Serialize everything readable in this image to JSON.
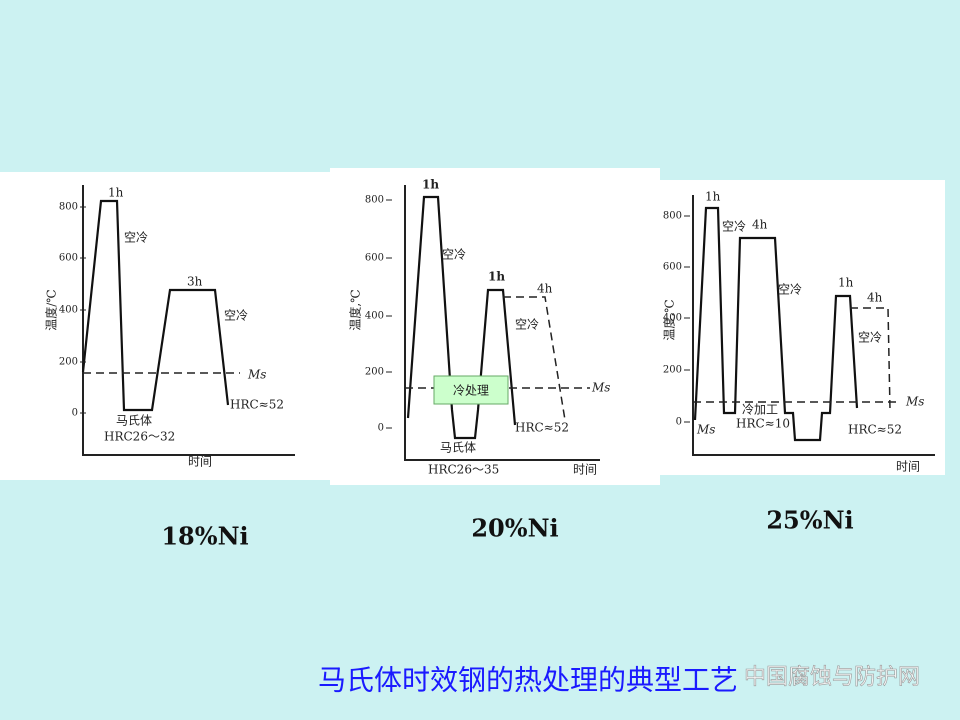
{
  "panels": [
    {
      "y_label": "温度/℃",
      "y_ticks": [
        "800",
        "600",
        "400",
        "200",
        "0"
      ],
      "x_label": "时间",
      "annotations": [
        "1h",
        "空冷",
        "3h",
        "空冷",
        "Ms",
        "HRC≈52",
        "马氏体",
        "HRC26～32"
      ],
      "caption": "18%Ni"
    },
    {
      "y_label": "温度,℃",
      "y_ticks": [
        "800",
        "600",
        "400",
        "200",
        "0"
      ],
      "x_label": "时间",
      "annotations": [
        "1h",
        "空冷",
        "1h",
        "4h",
        "空冷",
        "Ms",
        "冷处理",
        "HRC≈52",
        "马氏体",
        "HRC26～35"
      ],
      "caption": "20%Ni"
    },
    {
      "y_label": "温度,℃",
      "y_ticks": [
        "800",
        "600",
        "400",
        "200",
        "0"
      ],
      "x_label": "时间",
      "annotations": [
        "1h",
        "空冷",
        "4h",
        "空冷",
        "1h",
        "4h",
        "空冷",
        "Ms",
        "冷加工",
        "HRC≈10",
        "Ms",
        "HRC≈52"
      ],
      "caption": "25%Ni"
    }
  ],
  "title": "马氏体时效钢的热处理的典型工艺",
  "watermark": "中国腐蚀与防护网"
}
